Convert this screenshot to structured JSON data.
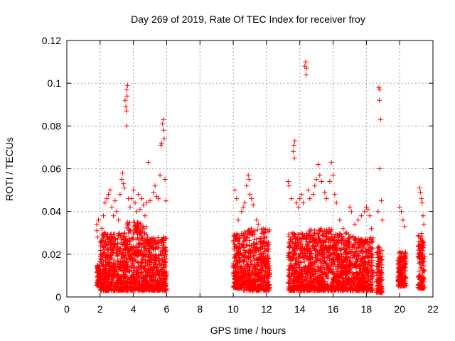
{
  "chart_data": {
    "type": "scatter",
    "title": "Day 269 of 2019, Rate Of TEC Index for receiver froy",
    "xlabel": "GPS time / hours",
    "ylabel": "ROTI / TECUs",
    "xlim": [
      0,
      22
    ],
    "ylim": [
      0,
      0.12
    ],
    "xticks": [
      0,
      2,
      4,
      6,
      8,
      10,
      12,
      14,
      16,
      18,
      20,
      22
    ],
    "yticks": [
      0,
      0.02,
      0.04,
      0.06,
      0.08,
      0.1,
      0.12
    ],
    "xtick_labels": [
      "0",
      "2",
      "4",
      "6",
      "8",
      "10",
      "12",
      "14",
      "16",
      "18",
      "20",
      "22"
    ],
    "ytick_labels": [
      "0",
      "0.02",
      "0.04",
      "0.06",
      "0.08",
      "0.1",
      "0.12"
    ],
    "grid": true,
    "marker": "+",
    "color": "#ff0000",
    "series": [
      {
        "name": "ROTI",
        "points": [
          [
            1.8,
            0.031
          ],
          [
            1.8,
            0.034
          ],
          [
            1.85,
            0.028
          ],
          [
            1.9,
            0.036
          ],
          [
            2.0,
            0.026
          ],
          [
            2.1,
            0.032
          ],
          [
            2.2,
            0.038
          ],
          [
            2.25,
            0.03
          ],
          [
            2.3,
            0.044
          ],
          [
            2.4,
            0.046
          ],
          [
            2.5,
            0.048
          ],
          [
            2.6,
            0.05
          ],
          [
            2.7,
            0.042
          ],
          [
            2.8,
            0.038
          ],
          [
            2.9,
            0.045
          ],
          [
            3.0,
            0.04
          ],
          [
            3.1,
            0.036
          ],
          [
            3.2,
            0.048
          ],
          [
            3.3,
            0.055
          ],
          [
            3.35,
            0.058
          ],
          [
            3.4,
            0.053
          ],
          [
            3.45,
            0.051
          ],
          [
            3.5,
            0.092
          ],
          [
            3.55,
            0.089
          ],
          [
            3.6,
            0.097
          ],
          [
            3.65,
            0.099
          ],
          [
            3.62,
            0.094
          ],
          [
            3.58,
            0.087
          ],
          [
            3.6,
            0.08
          ],
          [
            3.7,
            0.046
          ],
          [
            3.8,
            0.042
          ],
          [
            3.9,
            0.046
          ],
          [
            4.0,
            0.05
          ],
          [
            4.1,
            0.044
          ],
          [
            4.2,
            0.04
          ],
          [
            4.3,
            0.048
          ],
          [
            4.4,
            0.041
          ],
          [
            4.5,
            0.046
          ],
          [
            4.6,
            0.043
          ],
          [
            4.7,
            0.038
          ],
          [
            4.8,
            0.044
          ],
          [
            4.9,
            0.063
          ],
          [
            5.0,
            0.045
          ],
          [
            5.2,
            0.049
          ],
          [
            5.3,
            0.052
          ],
          [
            5.4,
            0.047
          ],
          [
            5.5,
            0.046
          ],
          [
            5.6,
            0.057
          ],
          [
            5.65,
            0.071
          ],
          [
            5.7,
            0.072
          ],
          [
            5.75,
            0.081
          ],
          [
            5.8,
            0.083
          ],
          [
            5.82,
            0.078
          ],
          [
            5.85,
            0.074
          ],
          [
            5.9,
            0.055
          ],
          [
            5.95,
            0.045
          ],
          [
            10.1,
            0.05
          ],
          [
            10.2,
            0.046
          ],
          [
            10.3,
            0.036
          ],
          [
            10.5,
            0.04
          ],
          [
            10.6,
            0.042
          ],
          [
            10.7,
            0.044
          ],
          [
            10.8,
            0.052
          ],
          [
            10.9,
            0.057
          ],
          [
            10.95,
            0.055
          ],
          [
            11.0,
            0.048
          ],
          [
            11.1,
            0.046
          ],
          [
            11.2,
            0.043
          ],
          [
            11.4,
            0.036
          ],
          [
            11.5,
            0.034
          ],
          [
            11.8,
            0.032
          ],
          [
            12.0,
            0.028
          ],
          [
            13.3,
            0.054
          ],
          [
            13.35,
            0.052
          ],
          [
            13.5,
            0.046
          ],
          [
            13.6,
            0.068
          ],
          [
            13.65,
            0.071
          ],
          [
            13.7,
            0.073
          ],
          [
            13.68,
            0.065
          ],
          [
            13.8,
            0.044
          ],
          [
            13.9,
            0.042
          ],
          [
            14.0,
            0.046
          ],
          [
            14.1,
            0.048
          ],
          [
            14.2,
            0.044
          ],
          [
            14.3,
            0.108
          ],
          [
            14.35,
            0.11
          ],
          [
            14.4,
            0.107
          ],
          [
            14.38,
            0.104
          ],
          [
            14.5,
            0.05
          ],
          [
            14.6,
            0.046
          ],
          [
            14.8,
            0.048
          ],
          [
            14.9,
            0.052
          ],
          [
            15.0,
            0.055
          ],
          [
            15.1,
            0.062
          ],
          [
            15.2,
            0.057
          ],
          [
            15.3,
            0.054
          ],
          [
            15.5,
            0.049
          ],
          [
            15.6,
            0.046
          ],
          [
            15.8,
            0.054
          ],
          [
            15.9,
            0.063
          ],
          [
            16.0,
            0.057
          ],
          [
            16.1,
            0.048
          ],
          [
            16.2,
            0.044
          ],
          [
            16.4,
            0.036
          ],
          [
            16.6,
            0.032
          ],
          [
            16.8,
            0.03
          ],
          [
            17.0,
            0.042
          ],
          [
            17.1,
            0.04
          ],
          [
            17.3,
            0.034
          ],
          [
            17.5,
            0.036
          ],
          [
            17.7,
            0.038
          ],
          [
            17.9,
            0.04
          ],
          [
            18.0,
            0.042
          ],
          [
            18.1,
            0.041
          ],
          [
            18.2,
            0.038
          ],
          [
            18.3,
            0.032
          ],
          [
            18.7,
            0.04
          ],
          [
            18.75,
            0.098
          ],
          [
            18.8,
            0.097
          ],
          [
            18.78,
            0.092
          ],
          [
            18.85,
            0.083
          ],
          [
            18.8,
            0.06
          ],
          [
            18.9,
            0.045
          ],
          [
            18.95,
            0.036
          ],
          [
            20.0,
            0.042
          ],
          [
            20.1,
            0.04
          ],
          [
            20.2,
            0.036
          ],
          [
            20.3,
            0.033
          ],
          [
            21.2,
            0.051
          ],
          [
            21.25,
            0.049
          ],
          [
            21.3,
            0.046
          ],
          [
            21.35,
            0.044
          ],
          [
            21.4,
            0.038
          ],
          [
            21.45,
            0.034
          ]
        ],
        "dense_bands": [
          {
            "x": [
              1.8,
              2.0
            ],
            "y": [
              0.005,
              0.015
            ]
          },
          {
            "x": [
              2.0,
              3.6
            ],
            "y": [
              0.003,
              0.03
            ]
          },
          {
            "x": [
              3.6,
              4.8
            ],
            "y": [
              0.003,
              0.035
            ]
          },
          {
            "x": [
              4.8,
              6.0
            ],
            "y": [
              0.003,
              0.028
            ]
          },
          {
            "x": [
              10.0,
              10.6
            ],
            "y": [
              0.004,
              0.03
            ]
          },
          {
            "x": [
              10.6,
              12.2
            ],
            "y": [
              0.003,
              0.032
            ]
          },
          {
            "x": [
              13.3,
              14.6
            ],
            "y": [
              0.003,
              0.03
            ]
          },
          {
            "x": [
              14.6,
              16.0
            ],
            "y": [
              0.003,
              0.032
            ]
          },
          {
            "x": [
              16.0,
              17.6
            ],
            "y": [
              0.003,
              0.03
            ]
          },
          {
            "x": [
              17.6,
              18.4
            ],
            "y": [
              0.003,
              0.028
            ]
          },
          {
            "x": [
              18.6,
              18.95
            ],
            "y": [
              0.002,
              0.024
            ]
          },
          {
            "x": [
              19.9,
              20.4
            ],
            "y": [
              0.005,
              0.022
            ]
          },
          {
            "x": [
              21.1,
              21.5
            ],
            "y": [
              0.004,
              0.03
            ]
          }
        ]
      }
    ]
  }
}
